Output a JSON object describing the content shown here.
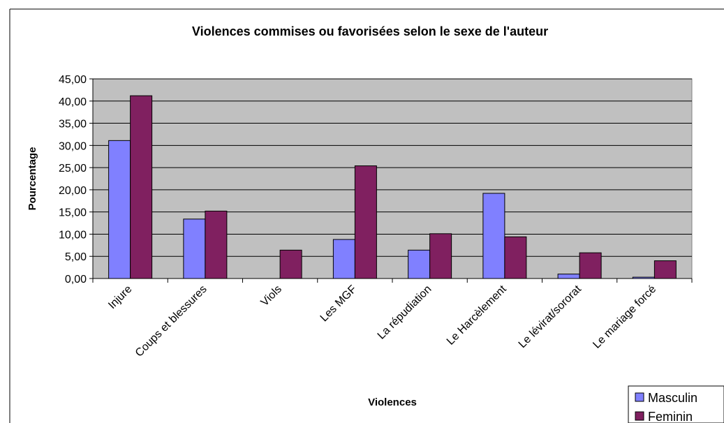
{
  "chart_data": {
    "type": "bar",
    "title": "Violences commises ou favorisées selon le sexe de l'auteur",
    "xlabel": "Violences",
    "ylabel": "Pourcentage",
    "ylim": [
      0,
      45
    ],
    "ytick_step": 5,
    "ytick_labels": [
      "0,00",
      "5,00",
      "10,00",
      "15,00",
      "20,00",
      "25,00",
      "30,00",
      "35,00",
      "40,00",
      "45,00"
    ],
    "categories": [
      "Injure",
      "Coups et blessures",
      "Viols",
      "Les MGF",
      "La répudiation",
      "Le Harcèlement",
      "Le lévirat/sororat",
      "Le mariage forcé"
    ],
    "category_labels_shown": [
      "Injure",
      "Coups et blessures",
      "Viols",
      "Les MGF",
      "La répudiation",
      "Le Harcèlement",
      "Le lévirat/sororat",
      "Le mariage forcé"
    ],
    "series": [
      {
        "name": "Masculin",
        "color": "#8080ff",
        "values": [
          31.1,
          13.4,
          0.0,
          8.8,
          6.4,
          19.2,
          1.0,
          0.3
        ]
      },
      {
        "name": "Feminin",
        "color": "#802060",
        "values": [
          41.2,
          15.2,
          6.4,
          25.4,
          10.1,
          9.4,
          5.8,
          4.0
        ]
      }
    ],
    "plot_background": "#c0c0c0",
    "grid": true,
    "legend_position": "bottom-right"
  }
}
